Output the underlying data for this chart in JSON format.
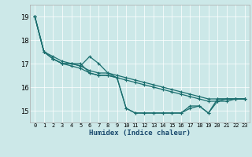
{
  "xlabel": "Humidex (Indice chaleur)",
  "bg_color": "#cce8e8",
  "grid_color": "#ffffff",
  "line_color": "#1a6e6e",
  "series": [
    [
      19.0,
      17.5,
      17.2,
      17.0,
      17.0,
      16.9,
      17.3,
      17.0,
      16.6,
      16.4,
      15.1,
      14.9,
      14.9,
      14.9,
      14.9,
      14.9,
      14.9,
      15.1,
      15.2,
      14.9,
      15.4,
      15.5,
      15.5,
      15.5
    ],
    [
      19.0,
      17.5,
      17.3,
      17.1,
      17.0,
      16.9,
      16.7,
      16.6,
      16.6,
      16.5,
      16.4,
      16.3,
      16.2,
      16.1,
      16.0,
      15.9,
      15.8,
      15.7,
      15.6,
      15.5,
      15.5,
      15.5,
      15.5,
      15.5
    ],
    [
      19.0,
      17.5,
      17.2,
      17.0,
      16.9,
      16.8,
      16.6,
      16.5,
      16.5,
      16.4,
      16.3,
      16.2,
      16.1,
      16.0,
      15.9,
      15.8,
      15.7,
      15.6,
      15.5,
      15.4,
      15.4,
      15.4,
      15.5,
      15.5
    ],
    [
      19.0,
      17.5,
      17.2,
      17.0,
      17.0,
      17.0,
      16.6,
      16.5,
      16.5,
      16.4,
      15.1,
      14.9,
      14.9,
      14.9,
      14.9,
      14.9,
      14.9,
      15.2,
      15.2,
      14.9,
      15.5,
      15.5,
      15.5,
      15.5
    ]
  ],
  "xlim": [
    -0.5,
    23.5
  ],
  "ylim": [
    14.5,
    19.5
  ],
  "yticks": [
    15,
    16,
    17,
    18,
    19
  ],
  "yticklabels": [
    "15",
    "16",
    "17",
    "18",
    "19"
  ],
  "xticks": [
    0,
    1,
    2,
    3,
    4,
    5,
    6,
    7,
    8,
    9,
    10,
    11,
    12,
    13,
    14,
    15,
    16,
    17,
    18,
    19,
    20,
    21,
    22,
    23
  ],
  "xticklabels": [
    "0",
    "1",
    "2",
    "3",
    "4",
    "5",
    "6",
    "7",
    "8",
    "9",
    "10",
    "11",
    "12",
    "13",
    "14",
    "15",
    "16",
    "17",
    "18",
    "19",
    "20",
    "21",
    "22",
    "23"
  ],
  "figwidth": 3.2,
  "figheight": 2.0,
  "dpi": 100
}
